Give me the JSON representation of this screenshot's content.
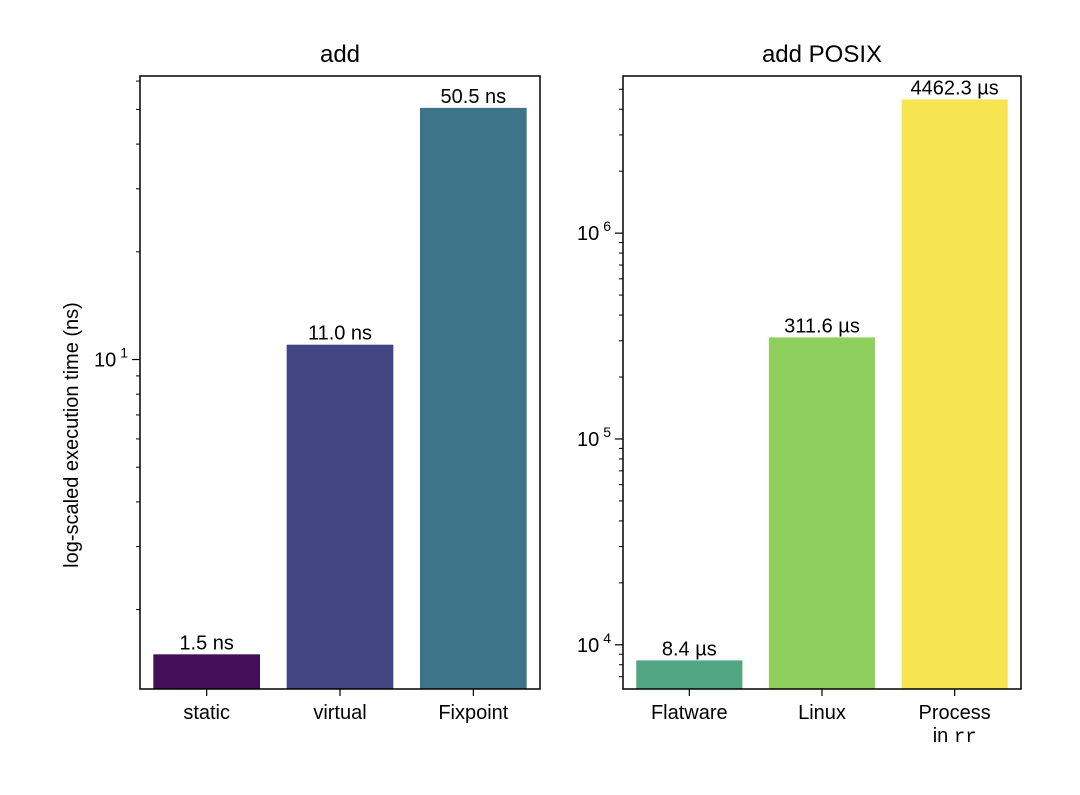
{
  "y_axis_label": "log-scaled execution time (ns)",
  "chart_data": [
    {
      "type": "bar",
      "title": "add",
      "ylabel": "log-scaled execution time (ns)",
      "yscale": "log",
      "ylim": [
        1.2,
        62
      ],
      "categories": [
        "static",
        "virtual",
        "Fixpoint"
      ],
      "values": [
        1.5,
        11.0,
        50.5
      ],
      "bar_labels": [
        "1.5 ns",
        "11.0 ns",
        "50.5 ns"
      ],
      "colors": [
        "#440f56",
        "#414582",
        "#3e7488"
      ],
      "major_ticks": [
        {
          "value": 10,
          "base": "10",
          "exp": "1"
        }
      ],
      "minor_ticks": [
        2,
        3,
        4,
        5,
        6,
        7,
        8,
        9,
        20,
        30,
        40,
        50,
        60
      ],
      "grid": false
    },
    {
      "type": "bar",
      "title": "add POSIX",
      "ylabel": "",
      "yscale": "log",
      "ylim": [
        6100,
        5800000
      ],
      "categories": [
        {
          "lines": [
            {
              "parts": [
                {
                  "text": "Flatware"
                }
              ]
            }
          ]
        },
        {
          "lines": [
            {
              "parts": [
                {
                  "text": "Linux"
                }
              ]
            }
          ]
        },
        {
          "lines": [
            {
              "parts": [
                {
                  "text": "Process"
                }
              ]
            },
            {
              "parts": [
                {
                  "text": "in "
                },
                {
                  "text": "rr",
                  "mono": true
                }
              ]
            }
          ]
        }
      ],
      "values": [
        8400,
        311600,
        4462300
      ],
      "bar_labels": [
        "8.4 µs",
        "311.6 µs",
        "4462.3 µs"
      ],
      "colors": [
        "#52a684",
        "#8ecf5d",
        "#f7e451"
      ],
      "major_ticks": [
        {
          "value": 10000,
          "base": "10",
          "exp": "4"
        },
        {
          "value": 100000,
          "base": "10",
          "exp": "5"
        },
        {
          "value": 1000000,
          "base": "10",
          "exp": "6"
        }
      ],
      "minor_ticks": [
        7000,
        8000,
        9000,
        20000,
        30000,
        40000,
        50000,
        60000,
        70000,
        80000,
        90000,
        200000,
        300000,
        400000,
        500000,
        600000,
        700000,
        800000,
        900000,
        2000000,
        3000000,
        4000000,
        5000000
      ],
      "grid": false
    }
  ]
}
